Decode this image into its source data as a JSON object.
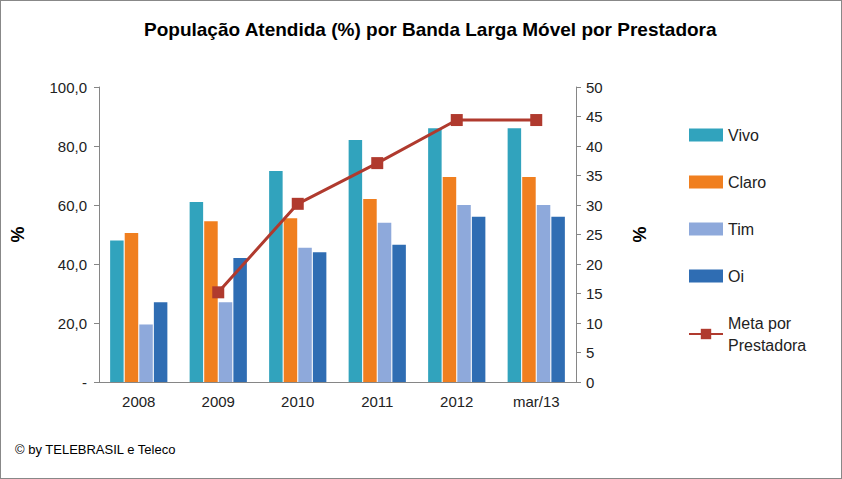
{
  "chart_data": {
    "type": "bar",
    "title": "População Atendida (%) por Banda Larga Móvel por Prestadora",
    "annotation": "© by TELEBRASIL e Teleco",
    "y_label": "%",
    "y2_label": "%",
    "categories": [
      "2008",
      "2009",
      "2010",
      "2011",
      "2012",
      "mar/13"
    ],
    "series": [
      {
        "name": "Vivo",
        "color": "#31a3bd",
        "values": [
          48,
          61,
          71.5,
          82,
          86,
          86
        ]
      },
      {
        "name": "Claro",
        "color": "#f07f1f",
        "values": [
          50.5,
          54.5,
          55.5,
          62,
          69.5,
          69.5
        ]
      },
      {
        "name": "Tim",
        "color": "#8ea9db",
        "values": [
          19.5,
          27,
          45.5,
          54,
          60,
          60
        ]
      },
      {
        "name": "Oi",
        "color": "#2f6db3",
        "values": [
          27,
          42,
          44,
          46.5,
          56,
          56
        ]
      },
      {
        "name": "Meta por Prestadora",
        "type": "line",
        "axis": "y2",
        "color": "#b03a2e",
        "marker": "square",
        "values": [
          null,
          15.2,
          30.2,
          37.1,
          44.4,
          44.4
        ]
      }
    ],
    "ylim": [
      0,
      100
    ],
    "yticks": [
      {
        "value": 0,
        "label": "-"
      },
      {
        "value": 20,
        "label": "20,0"
      },
      {
        "value": 40,
        "label": "40,0"
      },
      {
        "value": 60,
        "label": "60,0"
      },
      {
        "value": 80,
        "label": "80,0"
      },
      {
        "value": 100,
        "label": "100,0"
      }
    ],
    "y2lim": [
      0,
      50
    ],
    "y2ticks": [
      0,
      5,
      10,
      15,
      20,
      25,
      30,
      35,
      40,
      45,
      50
    ],
    "grid": false,
    "legend": "right"
  }
}
